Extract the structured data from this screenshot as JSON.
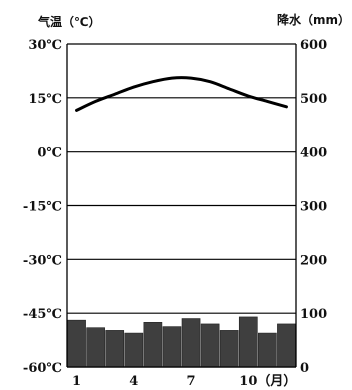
{
  "chart_data": {
    "type": "climate_chart",
    "left_axis": {
      "title": "气温（℃）",
      "range": [
        -60,
        30
      ],
      "ticks": [
        30,
        15,
        0,
        -15,
        -30,
        -45,
        -60
      ],
      "tick_labels": [
        "30℃",
        "15℃",
        "0℃",
        "-15℃",
        "-30℃",
        "-45℃",
        "-60℃"
      ]
    },
    "right_axis": {
      "title": "降水（mm）",
      "range": [
        0,
        600
      ],
      "ticks": [
        600,
        500,
        400,
        300,
        200,
        100,
        0
      ],
      "tick_labels": [
        "600",
        "500",
        "400",
        "300",
        "200",
        "100",
        "0"
      ]
    },
    "x_axis": {
      "months": [
        1,
        2,
        3,
        4,
        5,
        6,
        7,
        8,
        9,
        10,
        11,
        12
      ],
      "tick_labels": [
        {
          "month": 1,
          "label": "1"
        },
        {
          "month": 4,
          "label": "4"
        },
        {
          "month": 7,
          "label": "7"
        },
        {
          "month": 10,
          "label": "10（月）"
        }
      ]
    },
    "temperature": {
      "name": "气温",
      "values": [
        11.5,
        14,
        16,
        18,
        19.5,
        20.5,
        20.5,
        19.5,
        17.5,
        15.5,
        14,
        12.5
      ]
    },
    "precipitation": {
      "name": "降水",
      "values": [
        87,
        73,
        68,
        63,
        83,
        75,
        90,
        80,
        68,
        93,
        63,
        80
      ]
    },
    "grid": true,
    "colors": {
      "bar": "#3f3f3f",
      "line": "#000000",
      "grid": "#000000"
    }
  }
}
